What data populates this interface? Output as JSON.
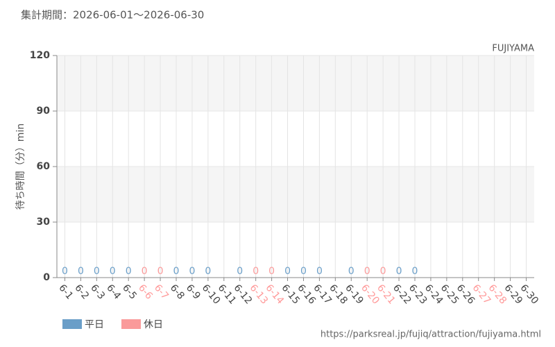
{
  "chart_data": {
    "type": "bar",
    "title": "集計期間：2026-06-01～2026-06-30",
    "subtitle": "FUJIYAMA",
    "y_label": "待ち時間（分）min",
    "source": "https://parksreal.jp/fujiq/attraction/fujiyama.html",
    "categories": [
      "6-1",
      "6-2",
      "6-3",
      "6-4",
      "6-5",
      "6-6",
      "6-7",
      "6-8",
      "6-9",
      "6-10",
      "6-11",
      "6-12",
      "6-13",
      "6-14",
      "6-15",
      "6-16",
      "6-17",
      "6-18",
      "6-19",
      "6-20",
      "6-21",
      "6-22",
      "6-23",
      "6-24",
      "6-25",
      "6-26",
      "6-27",
      "6-28",
      "6-29",
      "6-30"
    ],
    "category_label_colors": [
      "#444",
      "#444",
      "#444",
      "#444",
      "#444",
      "#f99",
      "#f99",
      "#444",
      "#444",
      "#444",
      "#444",
      "#444",
      "#f99",
      "#f99",
      "#444",
      "#444",
      "#444",
      "#444",
      "#444",
      "#f99",
      "#f99",
      "#444",
      "#444",
      "#444",
      "#444",
      "#444",
      "#f99",
      "#f99",
      "#444",
      "#444"
    ],
    "series": [
      {
        "name": "平日",
        "color": "#6a9ec8",
        "values": [
          0,
          0,
          0,
          0,
          0,
          null,
          null,
          0,
          0,
          0,
          null,
          0,
          null,
          null,
          0,
          0,
          0,
          null,
          0,
          null,
          null,
          0,
          0,
          null,
          null,
          null,
          null,
          null,
          null,
          null
        ]
      },
      {
        "name": "休日",
        "color": "#fa9a9a",
        "values": [
          null,
          null,
          null,
          null,
          null,
          0,
          0,
          null,
          null,
          null,
          null,
          null,
          0,
          0,
          null,
          null,
          null,
          null,
          null,
          0,
          0,
          null,
          null,
          null,
          null,
          null,
          null,
          null,
          null,
          null
        ]
      }
    ],
    "ylim": [
      0,
      120
    ],
    "yticks": [
      0,
      30,
      60,
      90,
      120
    ],
    "grid": true
  }
}
